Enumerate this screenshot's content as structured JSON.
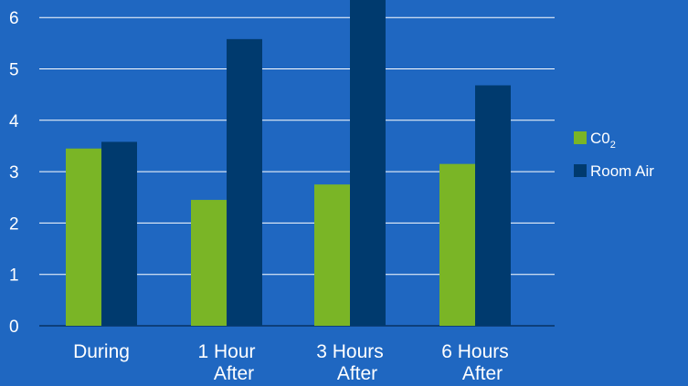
{
  "chart_data": {
    "type": "bar",
    "title": "",
    "xlabel": "",
    "ylabel": "",
    "categories": [
      [
        "During"
      ],
      [
        "1 Hour",
        "After"
      ],
      [
        "3 Hours",
        "After"
      ],
      [
        "6 Hours",
        "After"
      ]
    ],
    "series": [
      {
        "name": "C0₂",
        "color": "#7ab526",
        "values": [
          3.45,
          2.45,
          2.75,
          3.15
        ]
      },
      {
        "name": "Room Air",
        "color": "#003a6e",
        "values": [
          3.58,
          5.58,
          6.6,
          4.68
        ]
      }
    ],
    "ylim": [
      0,
      6.4
    ],
    "yticks": [
      0,
      1,
      2,
      3,
      4,
      5,
      6
    ],
    "grid": true,
    "legend": "right",
    "legend_items": [
      {
        "main": "C0",
        "sub": "2",
        "color": "#7ab526"
      },
      {
        "main": "Room Air",
        "sub": "",
        "color": "#003a6e"
      }
    ],
    "background_color": "#1f67c1",
    "gridline_color": "#ffffff"
  }
}
